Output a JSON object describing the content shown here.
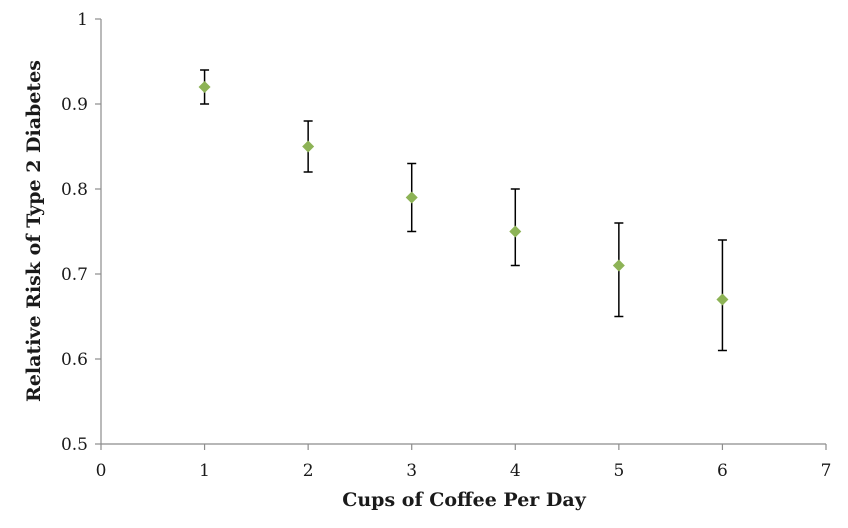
{
  "chart_data": {
    "type": "scatter",
    "title": "",
    "xlabel": "Cups of Coffee Per Day",
    "ylabel": "Relative Risk of Type 2 Diabetes",
    "xlim": [
      0,
      7
    ],
    "ylim": [
      0.5,
      1
    ],
    "x_ticks": [
      "0",
      "1",
      "2",
      "3",
      "4",
      "5",
      "6",
      "7"
    ],
    "y_ticks": [
      "0.5",
      "0.6",
      "0.7",
      "0.8",
      "0.9",
      "1"
    ],
    "grid": false,
    "legend": "none",
    "series": [
      {
        "points": [
          {
            "x": 1,
            "y": 0.92,
            "err_low": 0.9,
            "err_high": 0.94
          },
          {
            "x": 2,
            "y": 0.85,
            "err_low": 0.82,
            "err_high": 0.88
          },
          {
            "x": 3,
            "y": 0.79,
            "err_low": 0.75,
            "err_high": 0.83
          },
          {
            "x": 4,
            "y": 0.75,
            "err_low": 0.71,
            "err_high": 0.8
          },
          {
            "x": 5,
            "y": 0.71,
            "err_low": 0.65,
            "err_high": 0.76
          },
          {
            "x": 6,
            "y": 0.67,
            "err_low": 0.61,
            "err_high": 0.74
          }
        ]
      }
    ],
    "colors": {
      "marker": "#8db356",
      "error_bar": "#000000",
      "axis": "#8c8c8c"
    }
  }
}
